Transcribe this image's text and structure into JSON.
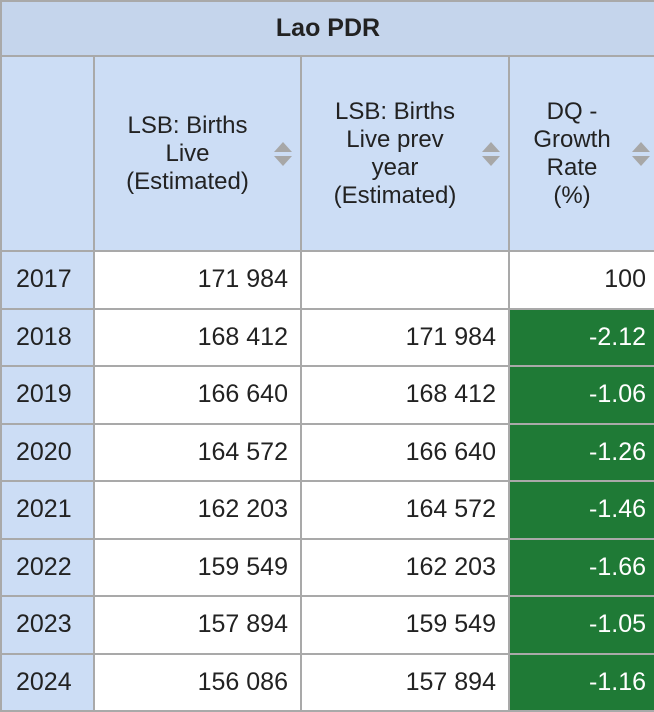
{
  "table": {
    "title": "Lao PDR",
    "columns": [
      {
        "label": "LSB: Births Live (Estimated)",
        "lines": [
          "LSB: Births",
          "Live",
          "(Estimated)"
        ]
      },
      {
        "label": "LSB: Births Live prev year (Estimated)",
        "lines": [
          "LSB: Births",
          "Live prev",
          "year",
          "(Estimated)"
        ]
      },
      {
        "label": "DQ - Growth Rate (%)",
        "lines": [
          "DQ -",
          "Growth",
          "Rate",
          "(%)"
        ]
      }
    ],
    "rows": [
      {
        "year": "2017",
        "births": "171 984",
        "prev": "",
        "growth": "100"
      },
      {
        "year": "2018",
        "births": "168 412",
        "prev": "171 984",
        "growth": "-2.12"
      },
      {
        "year": "2019",
        "births": "166 640",
        "prev": "168 412",
        "growth": "-1.06"
      },
      {
        "year": "2020",
        "births": "164 572",
        "prev": "166 640",
        "growth": "-1.26"
      },
      {
        "year": "2021",
        "births": "162 203",
        "prev": "164 572",
        "growth": "-1.46"
      },
      {
        "year": "2022",
        "births": "159 549",
        "prev": "162 203",
        "growth": "-1.66"
      },
      {
        "year": "2023",
        "births": "157 894",
        "prev": "159 549",
        "growth": "-1.05"
      },
      {
        "year": "2024",
        "births": "156 086",
        "prev": "157 894",
        "growth": "-1.16"
      }
    ]
  },
  "colors": {
    "header_bg": "#ccddf5",
    "title_bg": "#c5d5ec",
    "negative_growth_bg": "#1f7a36",
    "border": "#a9a9a9"
  },
  "icons": {
    "sort": "sort-arrows-icon"
  }
}
